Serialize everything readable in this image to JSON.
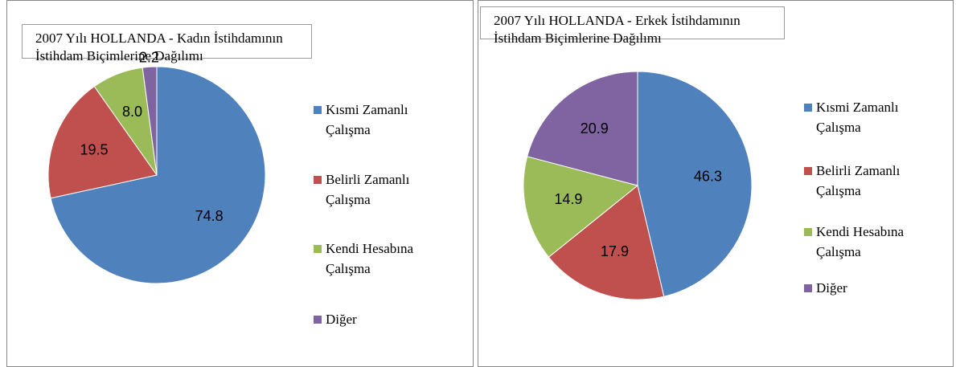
{
  "chart_data": [
    {
      "type": "pie",
      "title": "2007 Yılı HOLLANDA - Kadın İstihdamının İstihdam Biçimlerine Dağılımı",
      "categories": [
        "Kısmi Zamanlı Çalışma",
        "Belirli Zamanlı Çalışma",
        "Kendi Hesabına Çalışma",
        "Diğer"
      ],
      "values": [
        74.8,
        19.5,
        8.0,
        2.2
      ],
      "value_labels": [
        "74.8",
        "19.5",
        "8.0",
        "2.2"
      ],
      "colors": [
        "#4f81bd",
        "#c0504d",
        "#9bbb59",
        "#8064a2"
      ],
      "legend": "right"
    },
    {
      "type": "pie",
      "title": "2007 Yılı HOLLANDA - Erkek İstihdamının İstihdam Biçimlerine Dağılımı",
      "categories": [
        "Kısmi Zamanlı Çalışma",
        "Belirli Zamanlı Çalışma",
        "Kendi Hesabına Çalışma",
        "Diğer"
      ],
      "values": [
        46.3,
        17.9,
        14.9,
        20.9
      ],
      "value_labels": [
        "46.3",
        "17.9",
        "14.9",
        "20.9"
      ],
      "colors": [
        "#4f81bd",
        "#c0504d",
        "#9bbb59",
        "#8064a2"
      ],
      "legend": "right"
    }
  ]
}
